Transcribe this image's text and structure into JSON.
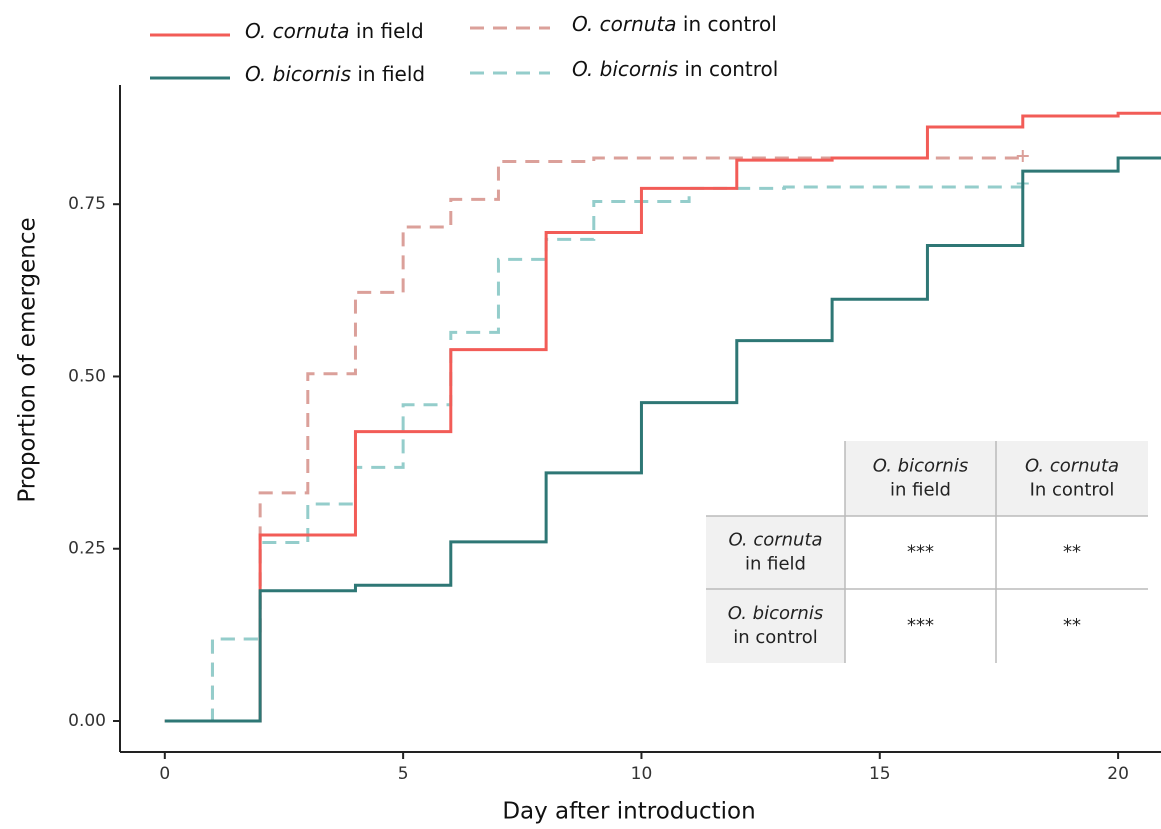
{
  "chart_data": {
    "type": "step",
    "x_label": "Day after introduction",
    "y_label": "Proportion of emergence",
    "xlim": [
      -0.94,
      20.9
    ],
    "ylim": [
      -0.045,
      0.923
    ],
    "xticks": [
      0,
      5,
      10,
      15,
      20
    ],
    "yticks": [
      {
        "value": 0,
        "label": "0.00"
      },
      {
        "value": 0.25,
        "label": "0.25"
      },
      {
        "value": 0.5,
        "label": "0.50"
      },
      {
        "value": 0.75,
        "label": "0.75"
      }
    ],
    "grid": false,
    "series": [
      {
        "name": "O. cornuta in field",
        "color": "#f25c57",
        "dash": false,
        "censor_mark": false,
        "x": [
          0,
          2,
          4,
          6,
          8,
          10,
          12,
          14,
          16,
          18,
          20
        ],
        "values": [
          0,
          0.27,
          0.42,
          0.539,
          0.709,
          0.773,
          0.814,
          0.817,
          0.862,
          0.878,
          0.882
        ]
      },
      {
        "name": "O. bicornis in field",
        "color": "#2e7775",
        "dash": false,
        "censor_mark": false,
        "x": [
          0,
          2,
          4,
          6,
          8,
          10,
          12,
          14,
          16,
          18,
          20
        ],
        "values": [
          0,
          0.189,
          0.197,
          0.26,
          0.36,
          0.462,
          0.552,
          0.612,
          0.69,
          0.798,
          0.817
        ]
      },
      {
        "name": "O. cornuta in control",
        "color": "#dba09a",
        "dash": true,
        "censor_mark": true,
        "x": [
          0,
          1,
          2,
          3,
          4,
          5,
          6,
          7,
          9,
          18
        ],
        "values": [
          0,
          0.119,
          0.331,
          0.504,
          0.622,
          0.717,
          0.757,
          0.812,
          0.817,
          0.82
        ]
      },
      {
        "name": "O. bicornis in control",
        "color": "#94cdcb",
        "dash": true,
        "censor_mark": true,
        "x": [
          0,
          1,
          2,
          3,
          4,
          5,
          6,
          7,
          8,
          9,
          11,
          13,
          18
        ],
        "values": [
          0,
          0.119,
          0.259,
          0.315,
          0.368,
          0.459,
          0.564,
          0.67,
          0.699,
          0.754,
          0.773,
          0.775,
          0.78
        ]
      }
    ],
    "inset_table": {
      "columns": [
        "O. bicornis in field",
        "O. cornuta In control"
      ],
      "rows": [
        "O. cornuta in field",
        "O. bicornis in control"
      ],
      "cells": [
        [
          "***",
          "**"
        ],
        [
          "***",
          "**"
        ]
      ]
    }
  }
}
